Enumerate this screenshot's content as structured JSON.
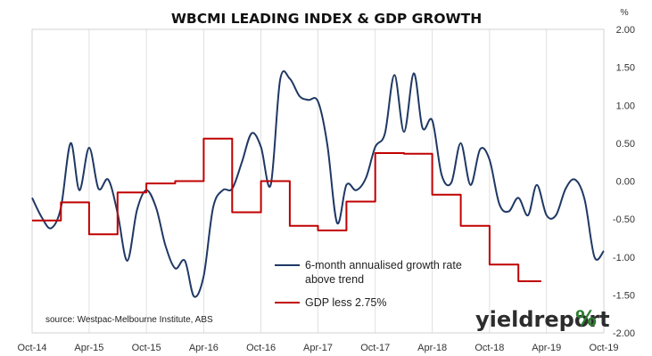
{
  "chart_data": {
    "type": "line",
    "title": "WBCMI LEADING INDEX & GDP GROWTH",
    "ylabel": "%",
    "ylim": [
      -2.0,
      2.0
    ],
    "y_ticks": [
      "2.00",
      "1.50",
      "1.00",
      "0.50",
      "0.00",
      "-0.50",
      "-1.00",
      "-1.50",
      "-2.00"
    ],
    "x_range": [
      "2014-10",
      "2019-10"
    ],
    "x_ticks": [
      "Oct-14",
      "Apr-15",
      "Oct-15",
      "Apr-16",
      "Oct-16",
      "Apr-17",
      "Oct-17",
      "Apr-18",
      "Oct-18",
      "Apr-19",
      "Oct-19"
    ],
    "grid": "vertical",
    "legend_position": "bottom-center",
    "source": "source: Westpac-Melbourne Institute, ABS",
    "series": [
      {
        "name": "6-month annualised growth rate above trend",
        "style": "smooth",
        "color": "#1f3864",
        "points": [
          [
            "2014-10-01",
            -0.22
          ],
          [
            "2014-11-01",
            -0.48
          ],
          [
            "2014-12-01",
            -0.62
          ],
          [
            "2015-01-01",
            -0.35
          ],
          [
            "2015-02-01",
            0.5
          ],
          [
            "2015-03-01",
            -0.12
          ],
          [
            "2015-04-01",
            0.44
          ],
          [
            "2015-05-01",
            -0.1
          ],
          [
            "2015-06-01",
            0.02
          ],
          [
            "2015-07-01",
            -0.42
          ],
          [
            "2015-08-01",
            -1.05
          ],
          [
            "2015-09-01",
            -0.38
          ],
          [
            "2015-10-01",
            -0.12
          ],
          [
            "2015-11-01",
            -0.35
          ],
          [
            "2015-12-01",
            -0.85
          ],
          [
            "2016-01-01",
            -1.15
          ],
          [
            "2016-02-01",
            -1.05
          ],
          [
            "2016-03-01",
            -1.52
          ],
          [
            "2016-04-01",
            -1.25
          ],
          [
            "2016-05-01",
            -0.35
          ],
          [
            "2016-06-01",
            -0.12
          ],
          [
            "2016-07-01",
            -0.1
          ],
          [
            "2016-08-01",
            0.25
          ],
          [
            "2016-09-01",
            0.63
          ],
          [
            "2016-10-01",
            0.45
          ],
          [
            "2016-11-01",
            -0.05
          ],
          [
            "2016-12-01",
            1.33
          ],
          [
            "2017-01-01",
            1.35
          ],
          [
            "2017-02-01",
            1.12
          ],
          [
            "2017-03-01",
            1.07
          ],
          [
            "2017-04-01",
            1.05
          ],
          [
            "2017-05-01",
            0.48
          ],
          [
            "2017-06-01",
            -0.55
          ],
          [
            "2017-07-01",
            -0.05
          ],
          [
            "2017-08-01",
            -0.12
          ],
          [
            "2017-09-01",
            0.04
          ],
          [
            "2017-10-01",
            0.45
          ],
          [
            "2017-11-01",
            0.63
          ],
          [
            "2017-12-01",
            1.4
          ],
          [
            "2018-01-01",
            0.65
          ],
          [
            "2018-02-01",
            1.42
          ],
          [
            "2018-03-01",
            0.7
          ],
          [
            "2018-04-01",
            0.8
          ],
          [
            "2018-05-01",
            0.08
          ],
          [
            "2018-06-01",
            -0.02
          ],
          [
            "2018-07-01",
            0.5
          ],
          [
            "2018-08-01",
            -0.05
          ],
          [
            "2018-09-01",
            0.42
          ],
          [
            "2018-10-01",
            0.28
          ],
          [
            "2018-11-01",
            -0.3
          ],
          [
            "2018-12-01",
            -0.4
          ],
          [
            "2019-01-01",
            -0.22
          ],
          [
            "2019-02-01",
            -0.45
          ],
          [
            "2019-03-01",
            -0.05
          ],
          [
            "2019-04-01",
            -0.45
          ],
          [
            "2019-05-01",
            -0.45
          ],
          [
            "2019-06-01",
            -0.1
          ],
          [
            "2019-07-01",
            0.02
          ],
          [
            "2019-08-01",
            -0.25
          ],
          [
            "2019-09-01",
            -1.0
          ],
          [
            "2019-10-01",
            -0.92
          ]
        ]
      },
      {
        "name": "GDP less 2.75%",
        "style": "step",
        "color": "#c00000",
        "points": [
          [
            "2014-10-01",
            -0.52
          ],
          [
            "2015-01-01",
            -0.28
          ],
          [
            "2015-04-01",
            -0.7
          ],
          [
            "2015-07-01",
            -0.15
          ],
          [
            "2015-10-01",
            -0.03
          ],
          [
            "2016-01-01",
            0.0
          ],
          [
            "2016-04-01",
            0.56
          ],
          [
            "2016-07-01",
            -0.41
          ],
          [
            "2016-10-01",
            0.0
          ],
          [
            "2017-01-01",
            -0.59
          ],
          [
            "2017-04-01",
            -0.65
          ],
          [
            "2017-07-01",
            -0.27
          ],
          [
            "2017-10-01",
            0.37
          ],
          [
            "2018-01-01",
            0.36
          ],
          [
            "2018-04-01",
            -0.18
          ],
          [
            "2018-07-01",
            -0.59
          ],
          [
            "2018-10-01",
            -1.1
          ],
          [
            "2019-01-01",
            -1.32
          ],
          [
            "2019-03-15",
            -1.32
          ]
        ]
      }
    ]
  },
  "brand": {
    "text": "yieldreport",
    "accent": "%",
    "accent_colors": [
      "#2e7d32",
      "#c00000"
    ]
  }
}
